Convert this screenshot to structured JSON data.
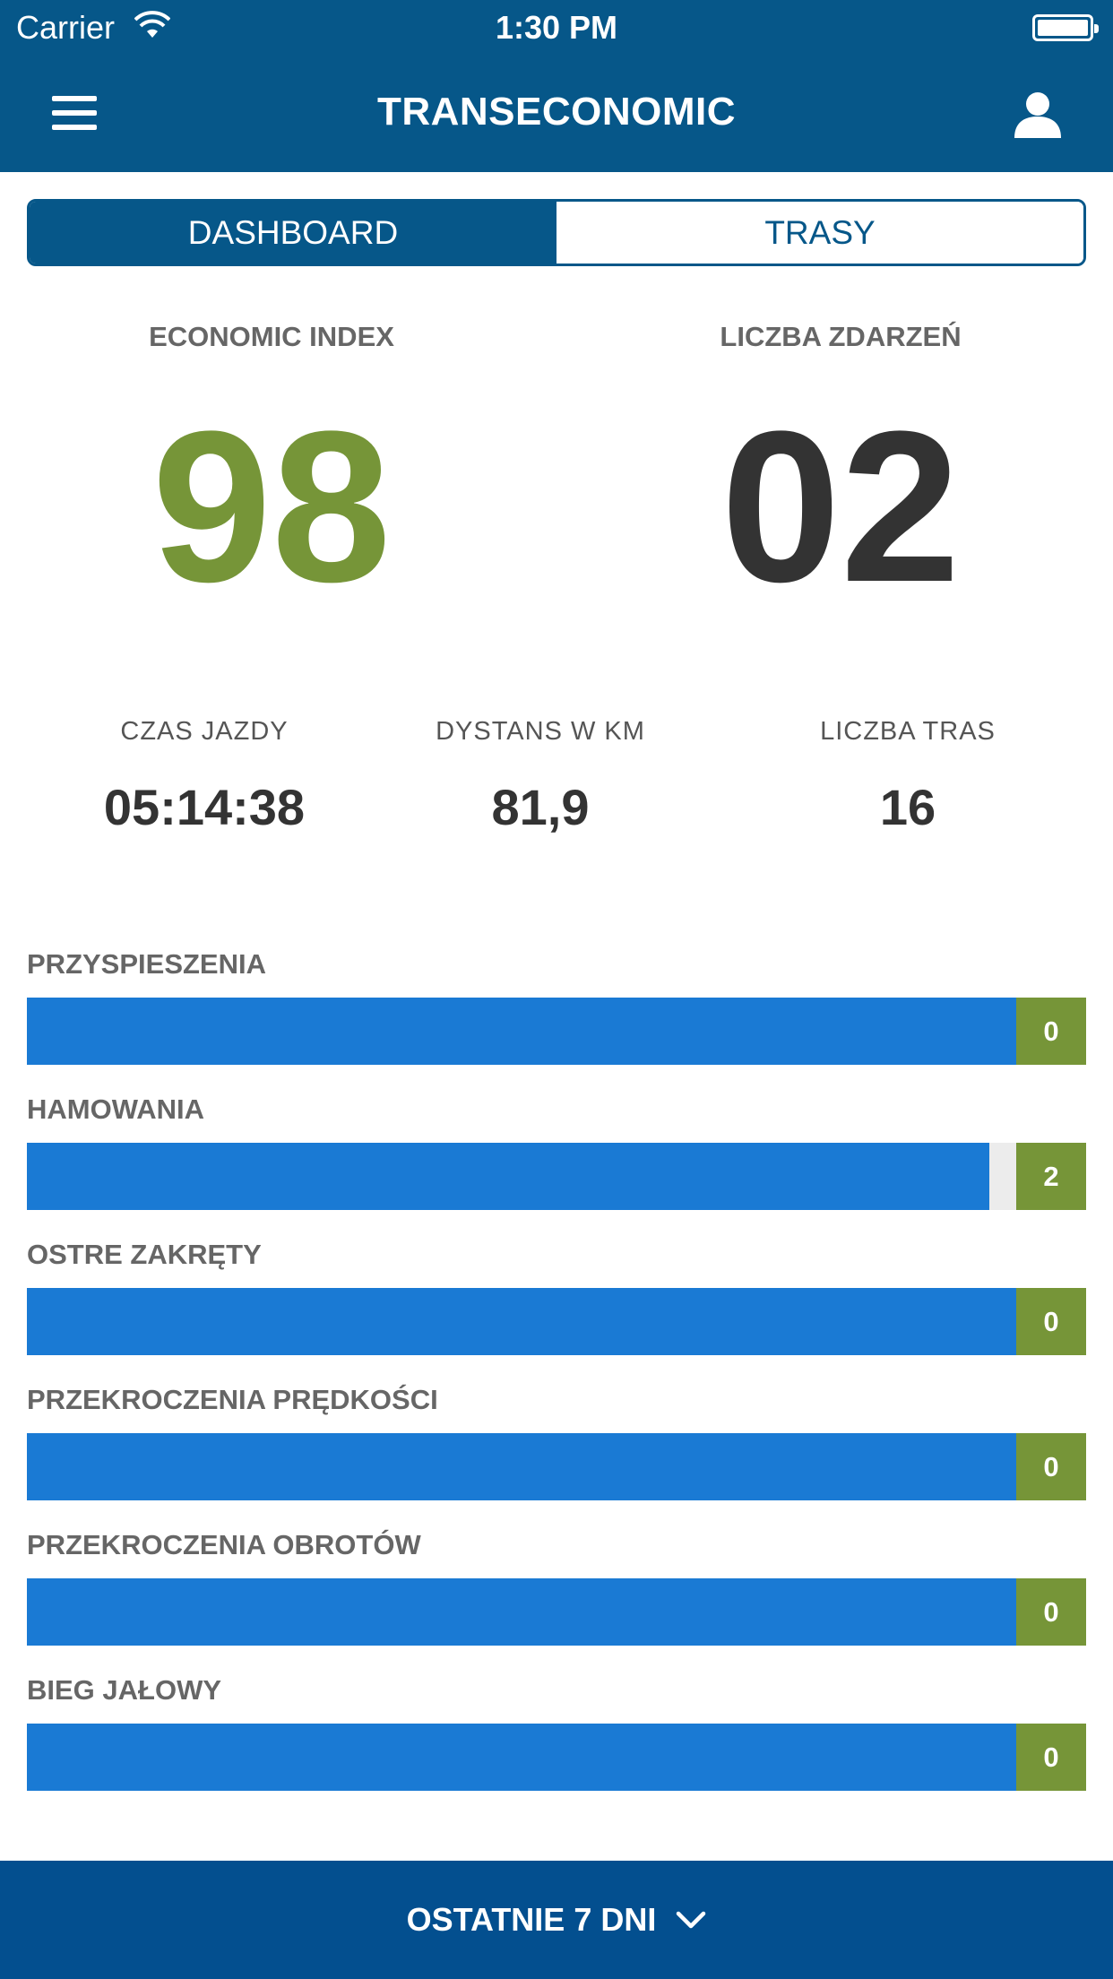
{
  "status_bar": {
    "carrier": "Carrier",
    "time": "1:30 PM"
  },
  "nav": {
    "title": "TRANSECONOMIC",
    "menu_icon": "hamburger-icon",
    "user_icon": "user-icon"
  },
  "tabs": [
    {
      "label": "DASHBOARD",
      "active": true
    },
    {
      "label": "TRASY",
      "active": false
    }
  ],
  "economic_index": {
    "label": "ECONOMIC INDEX",
    "value": "98",
    "color": "#769538"
  },
  "events_count": {
    "label": "LICZBA ZDARZEŃ",
    "value": "02",
    "color": "#333333"
  },
  "stats": [
    {
      "label": "CZAS JAZDY",
      "value": "05:14:38"
    },
    {
      "label": "DYSTANS W KM",
      "value": "81,9"
    },
    {
      "label": "LICZBA TRAS",
      "value": "16"
    }
  ],
  "bars": [
    {
      "label": "PRZYSPIESZENIA",
      "count": "0",
      "fill": 1.0
    },
    {
      "label": "HAMOWANIA",
      "count": "2",
      "fill": 0.973
    },
    {
      "label": "OSTRE ZAKRĘTY",
      "count": "0",
      "fill": 1.0
    },
    {
      "label": "PRZEKROCZENIA PRĘDKOŚCI",
      "count": "0",
      "fill": 1.0
    },
    {
      "label": "PRZEKROCZENIA OBROTÓW",
      "count": "0",
      "fill": 1.0
    },
    {
      "label": "BIEG JAŁOWY",
      "count": "0",
      "fill": 1.0
    }
  ],
  "colors": {
    "primary": "#065789",
    "bar_blue": "#1a7ad4",
    "accent_green": "#769538",
    "bottom_bar": "#034f8f"
  },
  "footer": {
    "period_label": "OSTATNIE 7 DNI",
    "chevron_icon": "chevron-down-icon"
  }
}
